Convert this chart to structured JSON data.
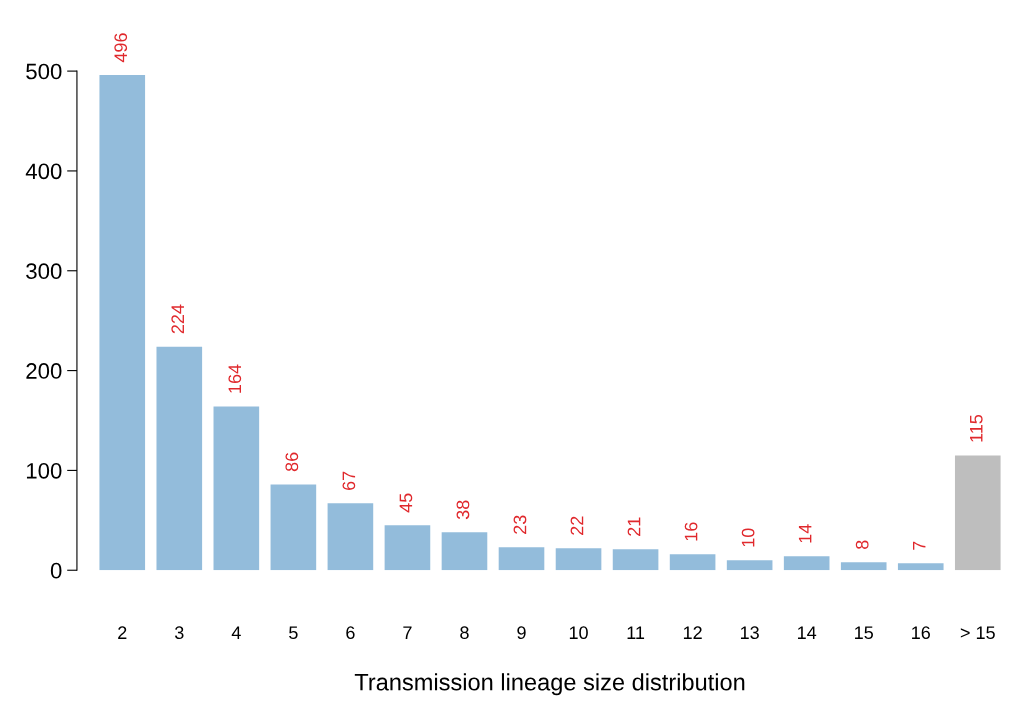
{
  "chart_data": {
    "type": "bar",
    "xlabel": "Transmission lineage size distribution",
    "categories": [
      "2",
      "3",
      "4",
      "5",
      "6",
      "7",
      "8",
      "9",
      "10",
      "11",
      "12",
      "13",
      "14",
      "15",
      "16",
      "> 15"
    ],
    "values": [
      496,
      224,
      164,
      86,
      67,
      45,
      38,
      23,
      22,
      21,
      16,
      10,
      14,
      8,
      7,
      115
    ],
    "colors": [
      "#93bcdb",
      "#93bcdb",
      "#93bcdb",
      "#93bcdb",
      "#93bcdb",
      "#93bcdb",
      "#93bcdb",
      "#93bcdb",
      "#93bcdb",
      "#93bcdb",
      "#93bcdb",
      "#93bcdb",
      "#93bcdb",
      "#93bcdb",
      "#93bcdb",
      "#bebebe"
    ],
    "ylim": [
      0,
      500
    ],
    "yticks": [
      0,
      100,
      200,
      300,
      400,
      500
    ],
    "data_labels": true,
    "grid": false
  }
}
